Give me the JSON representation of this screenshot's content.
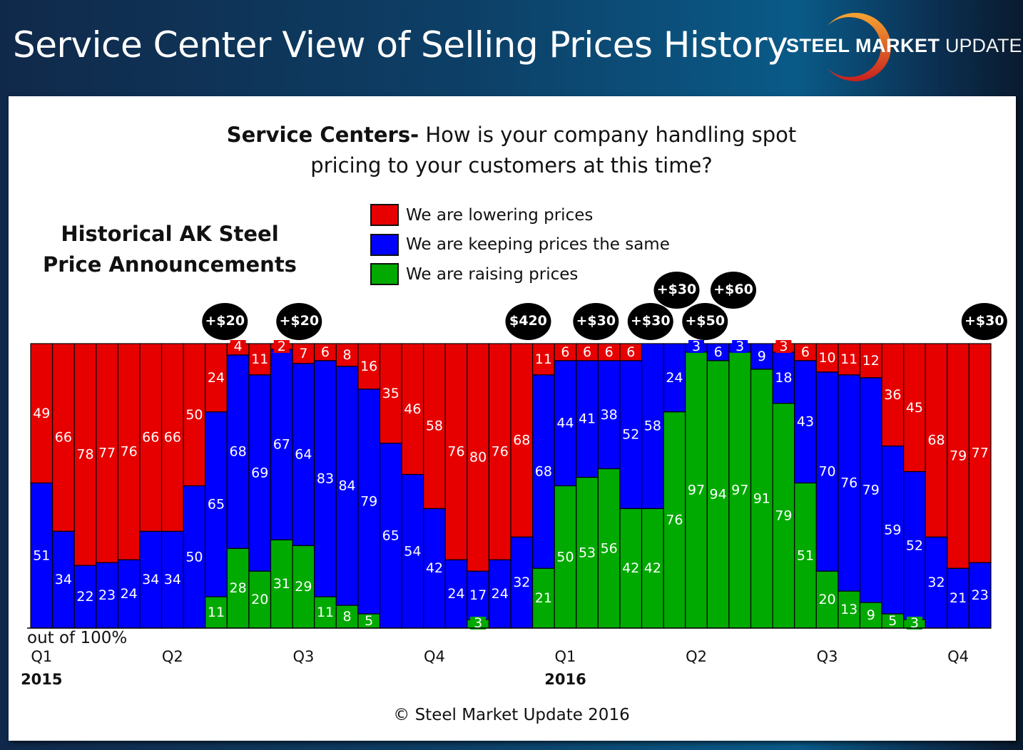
{
  "header": {
    "title": "Service Center View of Selling Prices History"
  },
  "logo": {
    "bold": "STEEL",
    "mid": "MARKET",
    "thin": "UPDATE"
  },
  "question": {
    "bold": "Service Centers-",
    "line1": " How is your company handling spot",
    "line2": "pricing to your customers at this time?"
  },
  "side_title": {
    "line1": "Historical AK Steel",
    "line2": "Price Announcements"
  },
  "footer": {
    "out_of": "out of 100%",
    "copyright": "© Steel Market Update 2016"
  },
  "chart_data": {
    "type": "bar",
    "stacked": "100%",
    "legend_placement": "top",
    "series": [
      {
        "name": "We are lowering prices",
        "color": "#e60000",
        "values": [
          49,
          66,
          78,
          77,
          76,
          66,
          66,
          50,
          24,
          4,
          11,
          2,
          7,
          6,
          8,
          16,
          35,
          46,
          58,
          76,
          80,
          76,
          68,
          11,
          6,
          6,
          6,
          6,
          0,
          0,
          0,
          0,
          0,
          0,
          3,
          6,
          10,
          11,
          12,
          36,
          45,
          68,
          79,
          77
        ]
      },
      {
        "name": "We are keeping prices the same",
        "color": "#0000ff",
        "values": [
          51,
          34,
          22,
          23,
          24,
          34,
          34,
          50,
          65,
          68,
          69,
          67,
          64,
          83,
          84,
          79,
          65,
          54,
          42,
          24,
          17,
          24,
          32,
          68,
          44,
          41,
          38,
          52,
          58,
          24,
          3,
          6,
          3,
          9,
          18,
          43,
          70,
          76,
          79,
          59,
          52,
          32,
          21,
          23
        ]
      },
      {
        "name": "We are raising prices",
        "color": "#00aa00",
        "values": [
          0,
          0,
          0,
          0,
          0,
          0,
          0,
          0,
          11,
          28,
          20,
          31,
          29,
          11,
          8,
          5,
          0,
          0,
          0,
          0,
          3,
          0,
          0,
          21,
          50,
          53,
          56,
          42,
          42,
          76,
          97,
          94,
          97,
          91,
          79,
          51,
          20,
          13,
          9,
          5,
          3,
          0,
          0,
          0
        ]
      }
    ],
    "x_ticks": [
      {
        "label": "Q1",
        "bar": 1
      },
      {
        "label": "Q2",
        "bar": 7
      },
      {
        "label": "Q3",
        "bar": 13
      },
      {
        "label": "Q4",
        "bar": 19
      },
      {
        "label": "Q1",
        "bar": 25
      },
      {
        "label": "Q2",
        "bar": 31
      },
      {
        "label": "Q3",
        "bar": 37
      },
      {
        "label": "Q4",
        "bar": 43
      }
    ],
    "years": [
      {
        "label": "2015",
        "bar": 1
      },
      {
        "label": "2016",
        "bar": 25
      }
    ],
    "ylim": [
      0,
      100
    ],
    "annotations": [
      {
        "label": "+$20",
        "bar": 9.4,
        "row": 0
      },
      {
        "label": "+$20",
        "bar": 12.8,
        "row": 0
      },
      {
        "label": "$420",
        "bar": 23.3,
        "row": 0
      },
      {
        "label": "+$30",
        "bar": 26.4,
        "row": 0
      },
      {
        "label": "+$30",
        "bar": 28.9,
        "row": 0
      },
      {
        "label": "+$30",
        "bar": 30.1,
        "row": 1
      },
      {
        "label": "+$50",
        "bar": 31.4,
        "row": 0
      },
      {
        "label": "+$60",
        "bar": 32.7,
        "row": 1
      },
      {
        "label": "+$30",
        "bar": 44.2,
        "row": 0
      }
    ]
  }
}
